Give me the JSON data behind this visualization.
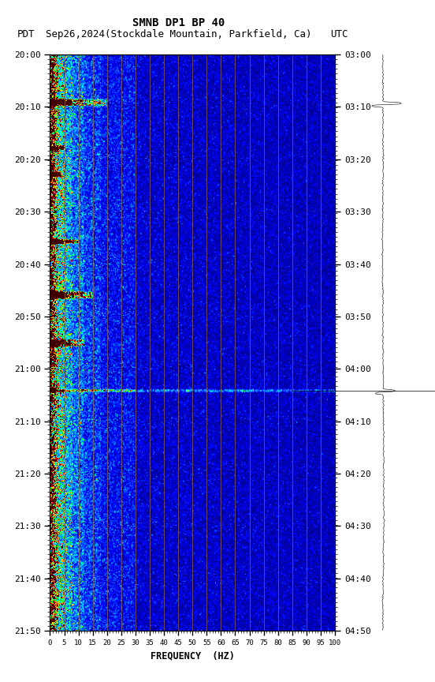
{
  "title_line1": "SMNB DP1 BP 40",
  "title_line2_pdt": "PDT",
  "title_line2_mid": "Sep26,2024(Stockdale Mountain, Parkfield, Ca)",
  "title_line2_utc": "UTC",
  "xlabel": "FREQUENCY  (HZ)",
  "freq_min": 0,
  "freq_max": 100,
  "freq_ticks": [
    0,
    5,
    10,
    15,
    20,
    25,
    30,
    35,
    40,
    45,
    50,
    55,
    60,
    65,
    70,
    75,
    80,
    85,
    90,
    95,
    100
  ],
  "time_left_labels": [
    "20:00",
    "20:10",
    "20:20",
    "20:30",
    "20:40",
    "20:50",
    "21:00",
    "21:10",
    "21:20",
    "21:30",
    "21:40",
    "21:50"
  ],
  "time_right_labels": [
    "03:00",
    "03:10",
    "03:20",
    "03:30",
    "03:40",
    "03:50",
    "04:00",
    "04:10",
    "04:20",
    "04:30",
    "04:40",
    "04:50"
  ],
  "n_time_steps": 720,
  "n_freq_steps": 400,
  "background_color": "#ffffff",
  "vertical_lines_color": "#996633",
  "vertical_lines_freq": [
    5,
    10,
    15,
    20,
    25,
    30,
    35,
    40,
    45,
    50,
    55,
    60,
    65,
    70,
    75,
    80,
    85,
    90,
    95,
    100
  ],
  "noise_seed": 42
}
